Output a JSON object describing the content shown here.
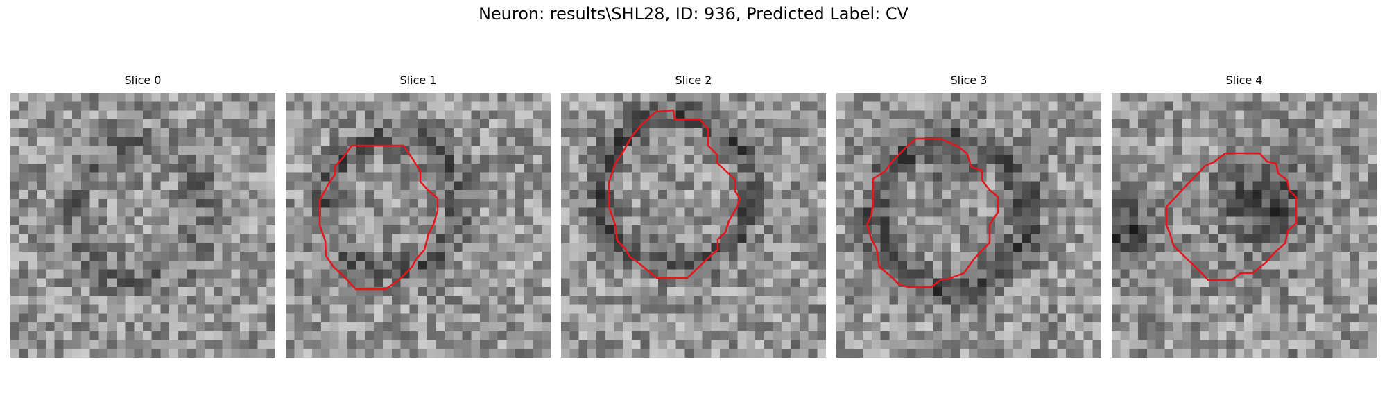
{
  "figure": {
    "title": "Neuron: results\\SHL28, ID: 936, Predicted Label: CV",
    "outline_color": "#e8141c"
  },
  "slices": [
    {
      "label": "Slice 0",
      "has_outline": false
    },
    {
      "label": "Slice 1",
      "has_outline": true
    },
    {
      "label": "Slice 2",
      "has_outline": true
    },
    {
      "label": "Slice 3",
      "has_outline": true
    },
    {
      "label": "Slice 4",
      "has_outline": true
    }
  ]
}
